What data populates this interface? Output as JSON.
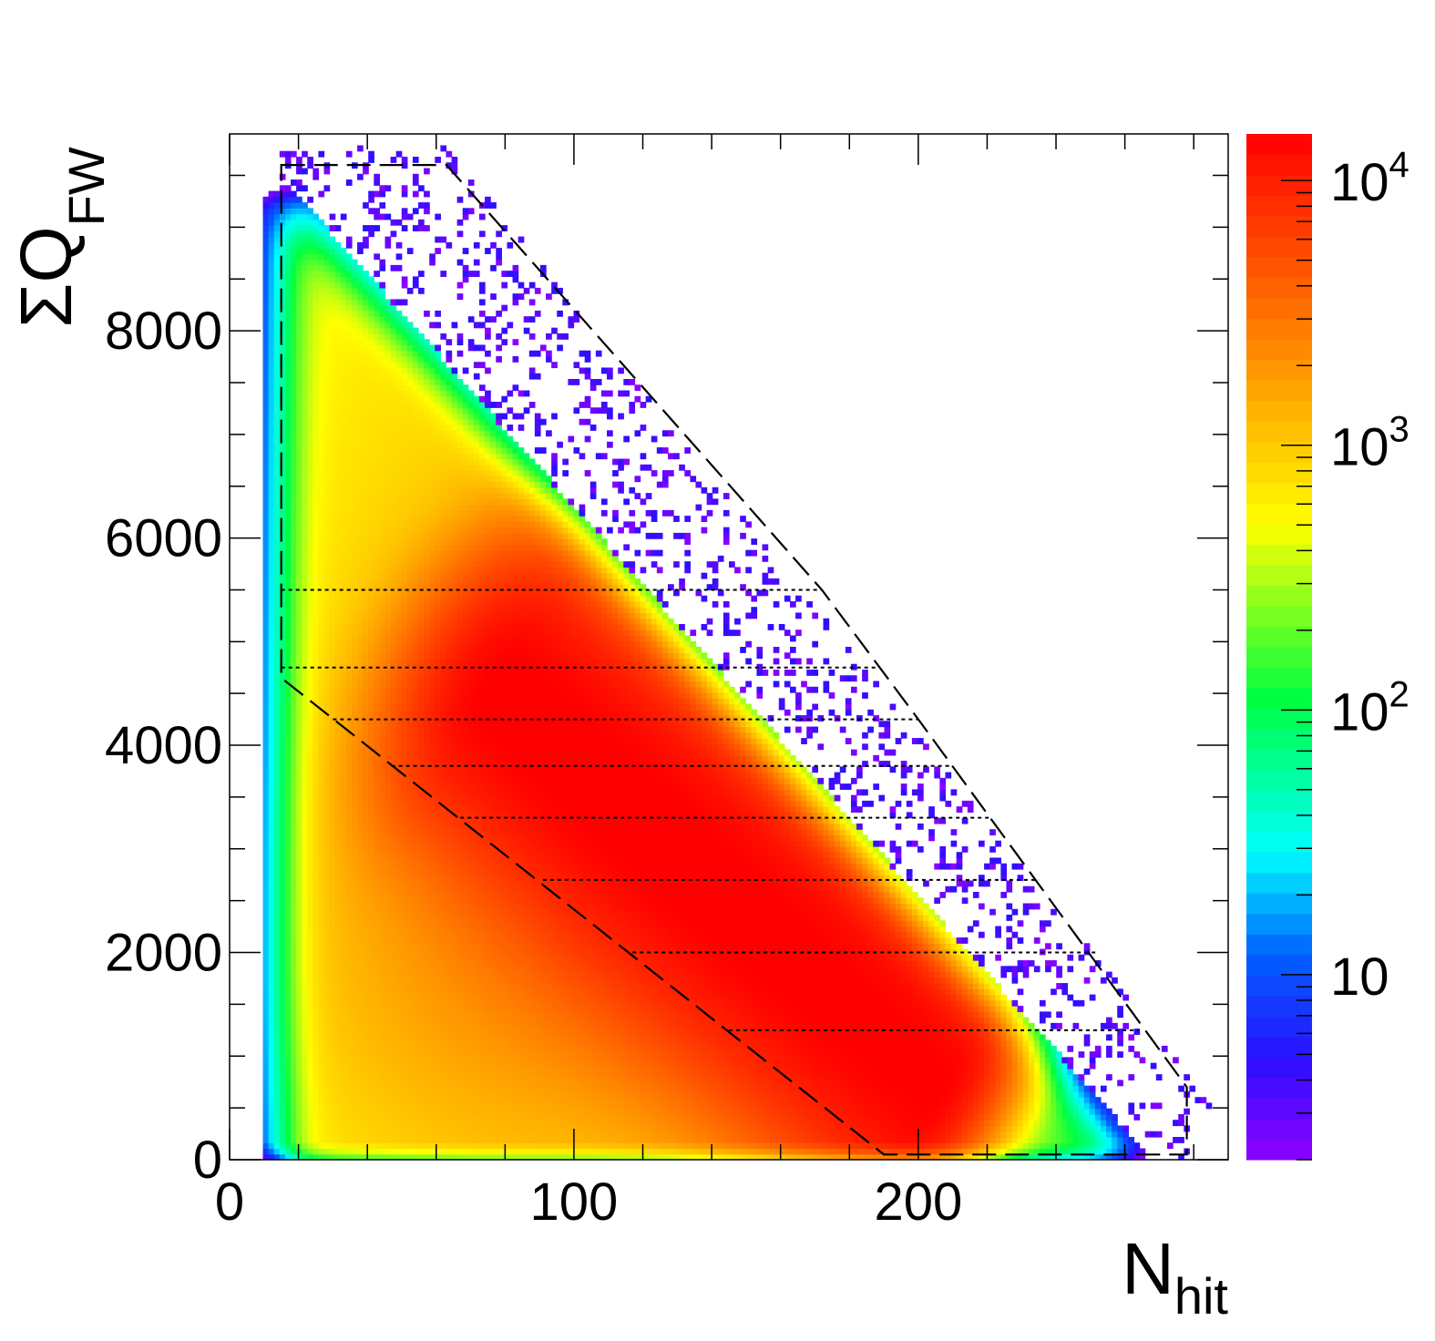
{
  "chart_data": {
    "type": "heatmap",
    "xlabel": {
      "main": "N",
      "sub": "hit"
    },
    "ylabel": {
      "main": "ΣQ",
      "sub": "FW"
    },
    "xlim": [
      0,
      290
    ],
    "ylim": [
      0,
      9900
    ],
    "x_ticks": [
      {
        "value": 0,
        "label": "0"
      },
      {
        "value": 100,
        "label": "100"
      },
      {
        "value": 200,
        "label": "200"
      }
    ],
    "y_ticks": [
      {
        "value": 0,
        "label": "0"
      },
      {
        "value": 2000,
        "label": "2000"
      },
      {
        "value": 4000,
        "label": "4000"
      },
      {
        "value": 6000,
        "label": "6000"
      },
      {
        "value": 8000,
        "label": "8000"
      }
    ],
    "x_minor_step": 20,
    "y_minor_step": 500,
    "colorbar": {
      "scale": "log",
      "range": [
        2,
        15000
      ],
      "tick_labels": [
        {
          "value": 10,
          "base": "10",
          "exp": ""
        },
        {
          "value": 100,
          "base": "10",
          "exp": "2"
        },
        {
          "value": 1000,
          "base": "10",
          "exp": "3"
        },
        {
          "value": 10000,
          "base": "10",
          "exp": "4"
        }
      ],
      "palette": [
        "#8f00ff",
        "#0000ff",
        "#00ffff",
        "#00ff00",
        "#ffff00",
        "#ff8000",
        "#ff0000"
      ]
    },
    "main_band": {
      "start": {
        "x": 80,
        "y": 4500
      },
      "end": {
        "x": 205,
        "y": 700
      },
      "peak_count": 15000
    },
    "selection_polygon": [
      [
        15,
        9600
      ],
      [
        63,
        9600
      ],
      [
        172,
        5500
      ],
      [
        200,
        4250
      ],
      [
        278,
        700
      ],
      [
        278,
        50
      ],
      [
        190,
        50
      ],
      [
        15,
        4650
      ]
    ],
    "centrality_cuts": [
      {
        "y": 5500,
        "x_start": 15,
        "x_end": 172
      },
      {
        "y": 4750,
        "x_start": 15,
        "x_end": 188
      },
      {
        "y": 4250,
        "x_start": 30,
        "x_end": 200
      },
      {
        "y": 3800,
        "x_start": 47,
        "x_end": 210
      },
      {
        "y": 3300,
        "x_start": 67,
        "x_end": 221
      },
      {
        "y": 2700,
        "x_start": 91,
        "x_end": 235
      },
      {
        "y": 2000,
        "x_start": 117,
        "x_end": 252
      },
      {
        "y": 1250,
        "x_start": 145,
        "x_end": 264
      }
    ]
  }
}
